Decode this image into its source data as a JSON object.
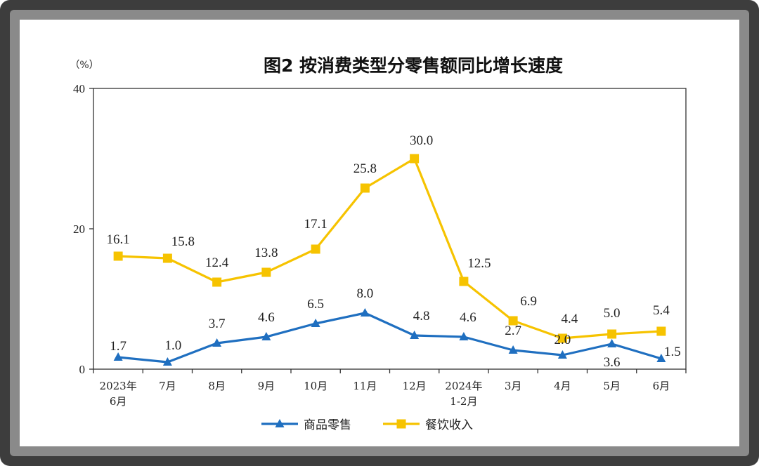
{
  "chart_data": {
    "type": "line",
    "title": "图2  按消费类型分零售额同比增长速度",
    "ylabel": "（%）",
    "ylim": [
      0,
      40
    ],
    "yticks": [
      "0",
      "20",
      "40"
    ],
    "categories": [
      [
        "2023年",
        "6月"
      ],
      [
        "7月"
      ],
      [
        "8月"
      ],
      [
        "9月"
      ],
      [
        "10月"
      ],
      [
        "11月"
      ],
      [
        "12月"
      ],
      [
        "2024年",
        "1-2月"
      ],
      [
        "3月"
      ],
      [
        "4月"
      ],
      [
        "5月"
      ],
      [
        "6月"
      ]
    ],
    "series": [
      {
        "name": "商品零售",
        "color": "#1f6fc0",
        "marker": "triangle",
        "values": [
          1.7,
          1.0,
          3.7,
          4.6,
          6.5,
          8.0,
          4.8,
          4.6,
          2.7,
          2.0,
          3.6,
          1.5
        ],
        "labels": [
          "1.7",
          "1.0",
          "3.7",
          "4.6",
          "6.5",
          "8.0",
          "4.8",
          "4.6",
          "2.7",
          "2.0",
          "3.6",
          "1.5"
        ]
      },
      {
        "name": "餐饮收入",
        "color": "#f6c300",
        "marker": "square",
        "values": [
          16.1,
          15.8,
          12.4,
          13.8,
          17.1,
          25.8,
          30.0,
          12.5,
          6.9,
          4.4,
          5.0,
          5.4
        ],
        "labels": [
          "16.1",
          "15.8",
          "12.4",
          "13.8",
          "17.1",
          "25.8",
          "30.0",
          "12.5",
          "6.9",
          "4.4",
          "5.0",
          "5.4"
        ]
      }
    ],
    "legend_position": "bottom"
  }
}
